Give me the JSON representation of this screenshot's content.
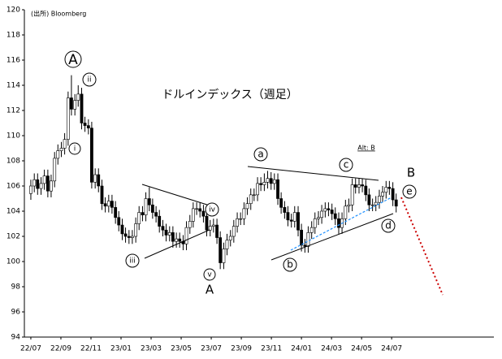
{
  "chart_data": {
    "type": "candlestick",
    "source": "(出所) Bloomberg",
    "title": "ドルインデックス（週足）",
    "x": [
      0,
      0.23,
      0.45,
      0.68,
      0.9,
      1.13,
      1.35,
      1.58,
      1.8,
      2.03,
      2.25,
      2.48,
      2.7,
      2.93,
      3.15,
      3.38,
      3.6,
      3.83,
      4.05,
      4.28,
      4.5,
      4.73,
      4.95,
      5.18,
      5.4,
      5.63,
      5.85,
      6.08,
      6.3,
      6.53,
      6.75,
      6.98,
      7.2,
      7.43,
      7.65,
      7.88,
      8.1,
      8.33,
      8.55,
      8.78,
      9,
      9.23,
      9.45,
      9.68,
      9.9,
      10.13,
      10.35,
      10.58,
      10.8,
      11.03,
      11.25,
      11.48,
      11.7,
      11.93,
      12.15,
      12.38,
      12.6,
      12.83,
      13.05,
      13.28,
      13.5,
      13.73,
      13.95,
      14.18,
      14.4,
      14.63,
      14.85,
      15.08,
      15.3,
      15.53,
      15.75,
      15.98,
      16.2,
      16.43,
      16.65,
      16.88,
      17.1,
      17.33,
      17.55,
      17.78,
      18,
      18.23,
      18.45,
      18.68,
      18.9,
      19.13,
      19.35,
      19.58,
      19.8,
      20.03,
      20.25,
      20.48,
      20.7,
      20.93,
      21.15,
      21.38,
      21.6,
      21.83,
      22.05,
      22.28,
      22.5,
      22.73,
      22.95,
      23.18,
      23.4,
      23.63,
      23.85,
      24.08,
      24.3
    ],
    "open": [
      105.4,
      106.0,
      106.5,
      105.8,
      106.2,
      106.8,
      105.6,
      106.4,
      108.2,
      108.8,
      109.0,
      109.7,
      113.0,
      112.1,
      112.8,
      113.3,
      111.0,
      110.8,
      110.6,
      106.3,
      106.9,
      106.0,
      104.6,
      104.4,
      104.8,
      104.3,
      103.5,
      102.9,
      102.2,
      102.0,
      101.9,
      102.0,
      103.0,
      103.9,
      103.7,
      105.0,
      104.5,
      103.9,
      103.6,
      102.8,
      102.5,
      102.1,
      102.3,
      101.6,
      101.8,
      101.6,
      101.4,
      102.7,
      103.2,
      104.2,
      104.2,
      104.0,
      103.6,
      102.5,
      102.8,
      102.9,
      101.9,
      99.9,
      101.0,
      101.7,
      102.0,
      102.8,
      103.4,
      103.4,
      104.2,
      104.6,
      105.3,
      105.3,
      106.2,
      106.1,
      106.3,
      106.6,
      106.2,
      106.5,
      105.0,
      104.3,
      103.9,
      103.3,
      103.2,
      103.9,
      102.5,
      101.3,
      101.2,
      102.3,
      102.7,
      103.4,
      103.5,
      104.0,
      104.2,
      104.1,
      103.8,
      103.4,
      102.7,
      103.4,
      104.4,
      104.5,
      106.1,
      105.9,
      106.1,
      106.0,
      105.3,
      104.5,
      104.5,
      104.7,
      105.2,
      105.5,
      105.9,
      105.8,
      104.9
    ],
    "high": [
      106.5,
      107.0,
      107.0,
      106.7,
      107.3,
      107.3,
      106.9,
      108.7,
      109.3,
      109.5,
      110.2,
      113.5,
      114.8,
      113.3,
      114.0,
      113.8,
      111.5,
      111.3,
      111.1,
      107.4,
      107.4,
      106.5,
      105.1,
      105.3,
      105.3,
      104.8,
      104.0,
      103.4,
      102.7,
      102.5,
      102.5,
      103.5,
      104.4,
      104.4,
      105.5,
      105.9,
      105.0,
      104.4,
      104.1,
      103.3,
      103.0,
      102.8,
      102.8,
      102.3,
      102.3,
      102.1,
      103.2,
      103.7,
      104.7,
      104.7,
      104.7,
      104.5,
      104.1,
      103.3,
      103.4,
      103.4,
      102.4,
      101.5,
      102.2,
      102.5,
      103.3,
      103.9,
      103.9,
      104.7,
      105.1,
      105.8,
      105.8,
      106.7,
      106.7,
      107.0,
      107.2,
      107.1,
      107.0,
      107.0,
      105.5,
      104.8,
      104.4,
      103.8,
      104.4,
      104.4,
      103.0,
      101.8,
      102.8,
      103.2,
      103.9,
      104.0,
      104.5,
      104.7,
      104.7,
      104.6,
      104.3,
      103.9,
      103.9,
      104.9,
      105.0,
      106.6,
      106.6,
      106.6,
      106.6,
      106.5,
      105.8,
      105.0,
      105.2,
      105.7,
      106.0,
      106.4,
      106.4,
      106.3,
      105.4
    ],
    "low": [
      104.9,
      105.5,
      105.3,
      105.3,
      105.7,
      105.1,
      105.1,
      105.9,
      107.7,
      108.3,
      108.5,
      109.2,
      111.6,
      111.6,
      112.3,
      110.5,
      110.3,
      110.1,
      105.8,
      105.8,
      105.5,
      104.1,
      103.9,
      103.9,
      103.8,
      103.0,
      102.4,
      101.7,
      101.5,
      101.4,
      101.4,
      101.5,
      102.5,
      103.2,
      103.2,
      104.0,
      103.4,
      103.1,
      102.3,
      102.0,
      101.6,
      101.6,
      101.1,
      101.1,
      101.1,
      100.9,
      100.9,
      102.2,
      102.7,
      103.7,
      103.5,
      103.1,
      102.0,
      102.0,
      102.3,
      101.4,
      99.4,
      99.4,
      100.5,
      101.2,
      101.5,
      102.3,
      102.9,
      102.9,
      103.7,
      104.1,
      104.8,
      104.8,
      105.6,
      105.6,
      105.8,
      105.7,
      105.7,
      104.5,
      103.8,
      103.4,
      102.8,
      102.7,
      102.7,
      102.0,
      100.8,
      100.7,
      100.7,
      101.8,
      102.2,
      102.9,
      103.0,
      103.5,
      103.6,
      103.3,
      102.9,
      102.2,
      102.2,
      102.9,
      103.9,
      104.0,
      105.4,
      105.4,
      105.5,
      104.8,
      104.0,
      104.0,
      104.0,
      104.2,
      104.7,
      105.0,
      105.3,
      104.4,
      103.9
    ],
    "close": [
      106.0,
      106.5,
      105.8,
      106.2,
      106.8,
      105.6,
      106.4,
      108.2,
      108.8,
      109.0,
      109.7,
      113.0,
      112.1,
      112.8,
      113.3,
      111.0,
      110.8,
      110.6,
      106.3,
      106.9,
      106.0,
      104.6,
      104.4,
      104.8,
      104.3,
      103.5,
      102.9,
      102.2,
      102.0,
      101.9,
      102.0,
      103.0,
      103.9,
      103.7,
      105.0,
      104.5,
      103.9,
      103.6,
      102.8,
      102.5,
      102.1,
      102.3,
      101.6,
      101.8,
      101.6,
      101.4,
      102.7,
      103.2,
      104.2,
      104.2,
      104.0,
      103.6,
      102.5,
      102.8,
      102.9,
      101.9,
      99.9,
      101.0,
      101.7,
      102.0,
      102.8,
      103.4,
      103.4,
      104.2,
      104.6,
      105.3,
      105.3,
      106.2,
      106.1,
      106.3,
      106.6,
      106.2,
      106.5,
      105.0,
      104.3,
      103.9,
      103.3,
      103.2,
      103.9,
      102.5,
      101.3,
      101.2,
      102.3,
      102.7,
      103.4,
      103.5,
      104.0,
      104.2,
      104.1,
      103.8,
      103.4,
      102.7,
      103.4,
      104.4,
      104.5,
      106.1,
      105.9,
      106.1,
      106.0,
      105.3,
      104.5,
      104.5,
      104.7,
      105.2,
      105.5,
      105.9,
      105.8,
      104.9,
      104.4
    ],
    "up_color": "#ffffff",
    "down_color": "#000000",
    "xlim": [
      -0.43,
      30.8
    ],
    "xticks": [
      {
        "value": 0,
        "label": "22/07"
      },
      {
        "value": 2,
        "label": "22/09"
      },
      {
        "value": 4,
        "label": "22/11"
      },
      {
        "value": 6,
        "label": "23/01"
      },
      {
        "value": 8,
        "label": "23/03"
      },
      {
        "value": 10,
        "label": "23/05"
      },
      {
        "value": 12,
        "label": "23/07"
      },
      {
        "value": 14,
        "label": "23/09"
      },
      {
        "value": 16,
        "label": "23/11"
      },
      {
        "value": 18,
        "label": "24/01"
      },
      {
        "value": 20,
        "label": "24/03"
      },
      {
        "value": 22,
        "label": "24/05"
      },
      {
        "value": 24,
        "label": "24/07"
      }
    ],
    "ylim": [
      94,
      120
    ],
    "yticks": [
      94,
      96,
      98,
      100,
      102,
      104,
      106,
      108,
      110,
      112,
      114,
      116,
      118,
      120
    ],
    "grid": false,
    "annotations": [
      "A",
      "ii",
      "i",
      "iii",
      "iv",
      "v",
      "A",
      "a",
      "b",
      "c",
      "d",
      "e",
      "B",
      "Alt: B"
    ]
  }
}
